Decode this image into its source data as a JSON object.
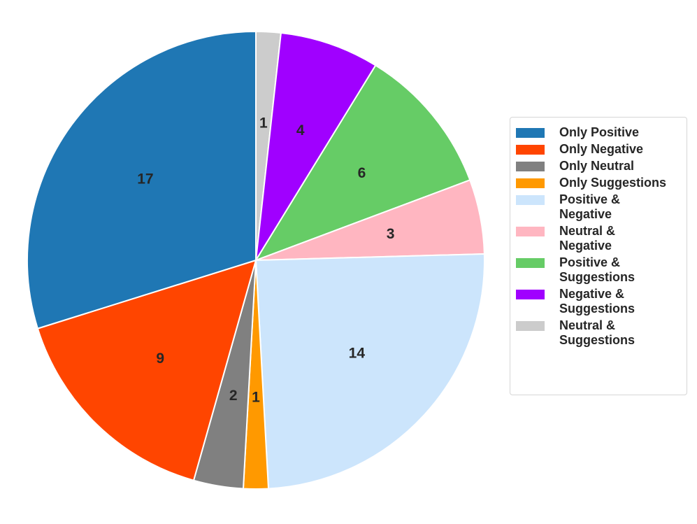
{
  "chart_data": {
    "type": "pie",
    "title": "",
    "start": "top",
    "direction": "clockwise",
    "legend_position": "right",
    "slices": [
      {
        "label": "Neutral & Suggestions",
        "value": 1,
        "color": "#cccccc"
      },
      {
        "label": "Negative & Suggestions",
        "value": 4,
        "color": "#a000ff"
      },
      {
        "label": "Positive & Suggestions",
        "value": 6,
        "color": "#66cc66"
      },
      {
        "label": "Neutral & Negative",
        "value": 3,
        "color": "#ffb6c1"
      },
      {
        "label": "Positive & Negative",
        "value": 14,
        "color": "#cce5fc"
      },
      {
        "label": "Only Suggestions",
        "value": 1,
        "color": "#ff9900"
      },
      {
        "label": "Only Neutral",
        "value": 2,
        "color": "#808080"
      },
      {
        "label": "Only Negative",
        "value": 9,
        "color": "#ff4500"
      },
      {
        "label": "Only Positive",
        "value": 17,
        "color": "#1f77b4"
      }
    ],
    "legend": [
      {
        "label": "Only Positive",
        "color": "#1f77b4"
      },
      {
        "label": "Only Negative",
        "color": "#ff4500"
      },
      {
        "label": "Only Neutral",
        "color": "#808080"
      },
      {
        "label": "Only Suggestions",
        "color": "#ff9900"
      },
      {
        "label": "Positive &\nNegative",
        "color": "#cce5fc"
      },
      {
        "label": "Neutral &\nNegative",
        "color": "#ffb6c1"
      },
      {
        "label": "Positive &\nSuggestions",
        "color": "#66cc66"
      },
      {
        "label": "Negative &\nSuggestions",
        "color": "#a000ff"
      },
      {
        "label": "Neutral &\nSuggestions",
        "color": "#cccccc"
      }
    ]
  }
}
